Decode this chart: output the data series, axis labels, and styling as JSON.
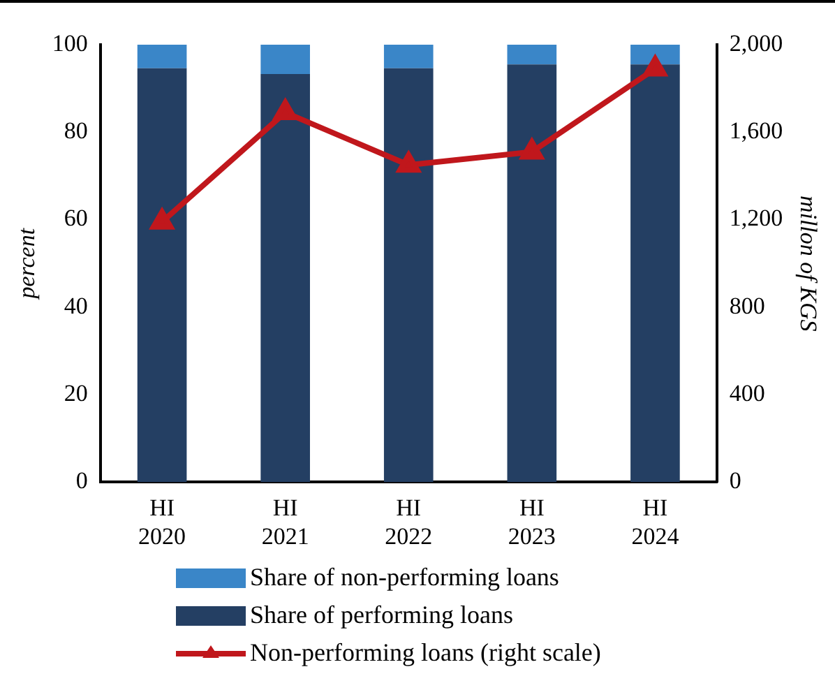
{
  "chart_data": {
    "type": "bar",
    "stacked": true,
    "categories": [
      "HI 2020",
      "HI 2021",
      "HI 2022",
      "HI 2023",
      "HI 2024"
    ],
    "ylabel": "percent",
    "y2label": "millon of KGS",
    "series": [
      {
        "name": "Share of performing loans",
        "color": "#243f63",
        "values": [
          94.6,
          93.3,
          94.6,
          95.5,
          95.5
        ]
      },
      {
        "name": "Share of non-performing loans",
        "color": "#3a86c8",
        "values": [
          5.4,
          6.7,
          5.4,
          4.5,
          4.5
        ]
      },
      {
        "name": "Non-performing loans (right scale)",
        "type": "line",
        "axis": "y2",
        "color": "#c0171c",
        "marker": "triangle",
        "values": [
          1190,
          1690,
          1450,
          1510,
          1890
        ]
      }
    ],
    "ylim": [
      0,
      100
    ],
    "yticks": [
      0,
      20,
      40,
      60,
      80,
      100
    ],
    "y2lim": [
      0,
      2000
    ],
    "y2ticks": [
      {
        "value": 0,
        "label": "0"
      },
      {
        "value": 400,
        "label": "400"
      },
      {
        "value": 800,
        "label": "800"
      },
      {
        "value": 1200,
        "label": "1,200"
      },
      {
        "value": 1600,
        "label": "1,600"
      },
      {
        "value": 2000,
        "label": "2,000"
      }
    ],
    "grid": false,
    "legend": "bottom"
  }
}
